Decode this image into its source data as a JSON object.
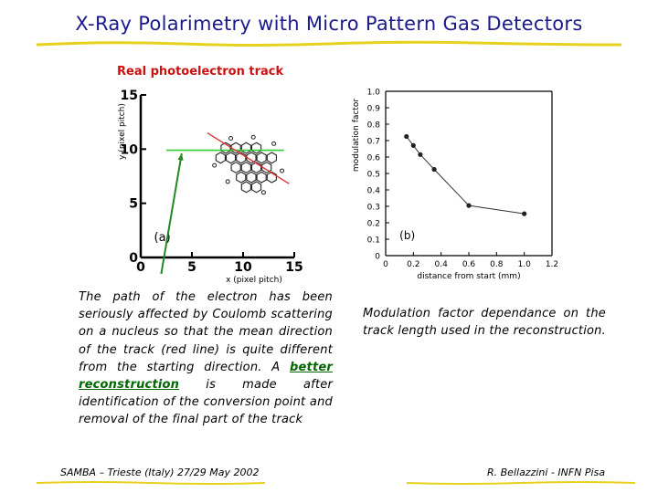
{
  "slide": {
    "title": "X-Ray Polarimetry with Micro Pattern Gas Detectors",
    "caption": "Real photoelectron track",
    "footer_left": "SAMBA – Trieste (Italy) 27/29 May 2002",
    "footer_right": "R. Bellazzini - INFN Pisa",
    "left_text_1": "The path of the electron has been seriously affected by Coulomb scattering on a nucleus so that the mean direction of the track (red line) is quite different from the starting direction. A ",
    "left_text_link": "better reconstruction",
    "left_text_2": " is made after identification of the conversion point and removal of the final part of the track",
    "right_text": "Modulation factor dependance on the track length used in the reconstruction."
  },
  "chart_data": [
    {
      "type": "scatter",
      "panel_label": "(a)",
      "xlabel": "x (pixel pitch)",
      "ylabel": "y (pixel pitch)",
      "xlim": [
        0,
        15
      ],
      "ylim": [
        0,
        15
      ],
      "x_ticks": [
        "0",
        "5",
        "10",
        "15"
      ],
      "y_ticks": [
        "0",
        "5",
        "10",
        "15"
      ],
      "hex_cells": [
        {
          "x": 8.3,
          "y": 10.1
        },
        {
          "x": 9.3,
          "y": 10.1
        },
        {
          "x": 10.3,
          "y": 10.1
        },
        {
          "x": 11.3,
          "y": 10.1
        },
        {
          "x": 7.8,
          "y": 9.2
        },
        {
          "x": 8.8,
          "y": 9.2
        },
        {
          "x": 9.8,
          "y": 9.2
        },
        {
          "x": 10.8,
          "y": 9.2
        },
        {
          "x": 11.8,
          "y": 9.2
        },
        {
          "x": 12.8,
          "y": 9.2
        },
        {
          "x": 9.3,
          "y": 8.3
        },
        {
          "x": 10.3,
          "y": 8.3
        },
        {
          "x": 11.3,
          "y": 8.3
        },
        {
          "x": 12.3,
          "y": 8.3
        },
        {
          "x": 9.8,
          "y": 7.4
        },
        {
          "x": 10.8,
          "y": 7.4
        },
        {
          "x": 11.8,
          "y": 7.4
        },
        {
          "x": 12.8,
          "y": 7.4
        },
        {
          "x": 10.3,
          "y": 6.5
        },
        {
          "x": 11.3,
          "y": 6.5
        }
      ],
      "small_dots": [
        {
          "x": 8.8,
          "y": 11.0
        },
        {
          "x": 11.0,
          "y": 11.1
        },
        {
          "x": 13.0,
          "y": 10.5
        },
        {
          "x": 7.2,
          "y": 8.5
        },
        {
          "x": 13.8,
          "y": 8.0
        },
        {
          "x": 12.0,
          "y": 6.0
        },
        {
          "x": 8.5,
          "y": 7.0
        }
      ],
      "red_line": [
        [
          6.5,
          11.5
        ],
        [
          14.5,
          6.8
        ]
      ],
      "green_line": [
        [
          2.5,
          9.9
        ],
        [
          14.0,
          9.9
        ]
      ],
      "track_start_arrow": {
        "from": [
          2.0,
          0
        ],
        "to": [
          4.0,
          9.6
        ]
      },
      "colors": {
        "red_line": "#dd3333",
        "green_line": "#33cc33",
        "arrow": "#228822"
      }
    },
    {
      "type": "line",
      "panel_label": "(b)",
      "xlabel": "distance from start (mm)",
      "ylabel": "modulation factor",
      "xlim": [
        0,
        1.2
      ],
      "ylim": [
        0,
        1.0
      ],
      "x_ticks": [
        "0",
        "0.2",
        "0.4",
        "0.6",
        "0.8",
        "1.0",
        "1.2"
      ],
      "y_ticks": [
        "0",
        "0.1",
        "0.2",
        "0.3",
        "0.4",
        "0.5",
        "0.6",
        "0.7",
        "0.8",
        "0.9",
        "1.0"
      ],
      "series": [
        {
          "x": [
            0.15,
            0.2,
            0.25,
            0.35,
            0.6,
            1.0
          ],
          "y": [
            0.725,
            0.67,
            0.615,
            0.525,
            0.305,
            0.255
          ]
        }
      ]
    }
  ]
}
